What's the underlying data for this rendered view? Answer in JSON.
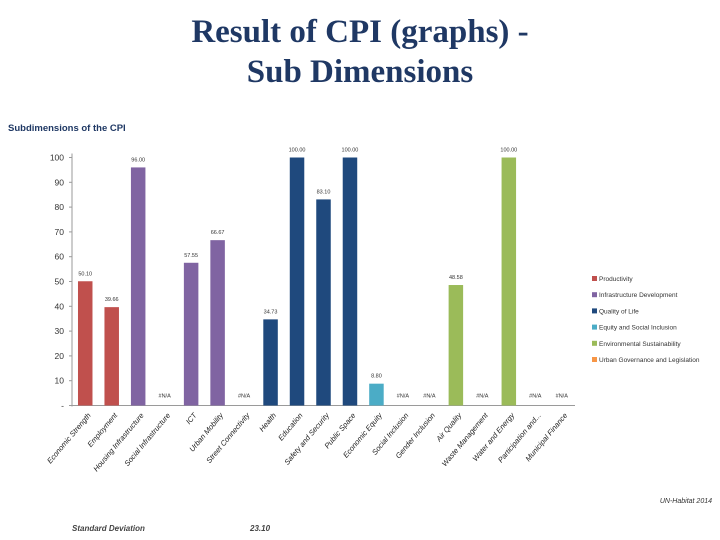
{
  "slide": {
    "title_line1": "Result of CPI (graphs) -",
    "title_line2": "Sub Dimensions"
  },
  "footer": {
    "credit": "UN-Habitat 2014",
    "std_label": "Standard Deviation",
    "std_value": "23.10"
  },
  "chart_data": {
    "type": "bar",
    "title": "Subdimensions of the CPI",
    "ylim": [
      0,
      100
    ],
    "yticks": [
      "-",
      "10",
      "20",
      "30",
      "40",
      "50",
      "60",
      "70",
      "80",
      "90",
      "100"
    ],
    "grid": false,
    "legend_position": "right",
    "groups": [
      {
        "name": "Productivity",
        "color": "#c0504d"
      },
      {
        "name": "Infrastructure Development",
        "color": "#8064a2"
      },
      {
        "name": "Quality of Life",
        "color": "#1f497d"
      },
      {
        "name": "Equity and Social Inclusion",
        "color": "#4bacc6"
      },
      {
        "name": "Environmental Sustainability",
        "color": "#9bbb59"
      },
      {
        "name": "Urban Governance and Legislation",
        "color": "#f79646"
      }
    ],
    "categories": [
      {
        "label": "Economic Strength",
        "value": 50.1,
        "text": "50.10",
        "group": 0
      },
      {
        "label": "Employment",
        "value": 39.66,
        "text": "39.66",
        "group": 0
      },
      {
        "label": "Housing Infrastructure",
        "value": 96.0,
        "text": "96.00",
        "group": 1
      },
      {
        "label": "Social Infrastructure",
        "value": null,
        "text": "#N/A",
        "group": 1
      },
      {
        "label": "ICT",
        "value": 57.55,
        "text": "57.55",
        "group": 1
      },
      {
        "label": "Urban Mobility",
        "value": 66.67,
        "text": "66.67",
        "group": 1
      },
      {
        "label": "Street Connectivity",
        "value": null,
        "text": "#N/A",
        "group": 1
      },
      {
        "label": "Health",
        "value": 34.73,
        "text": "34.73",
        "group": 2
      },
      {
        "label": "Education",
        "value": 100.0,
        "text": "100.00",
        "group": 2
      },
      {
        "label": "Safety and Security",
        "value": 83.1,
        "text": "83.10",
        "group": 2
      },
      {
        "label": "Public Space",
        "value": 100.0,
        "text": "100.00",
        "group": 2
      },
      {
        "label": "Economic Equity",
        "value": 8.8,
        "text": "8.80",
        "group": 3
      },
      {
        "label": "Social Inclusion",
        "value": null,
        "text": "#N/A",
        "group": 3
      },
      {
        "label": "Gender Inclusion",
        "value": null,
        "text": "#N/A",
        "group": 3
      },
      {
        "label": "Air Quality",
        "value": 48.58,
        "text": "48.58",
        "group": 4
      },
      {
        "label": "Waste Management",
        "value": null,
        "text": "#N/A",
        "group": 4
      },
      {
        "label": "Water and Energy",
        "value": 100.0,
        "text": "100.00",
        "group": 4
      },
      {
        "label": "Participation and...",
        "value": null,
        "text": "#N/A",
        "group": 5
      },
      {
        "label": "Municipal Finance",
        "value": null,
        "text": "#N/A",
        "group": 5
      }
    ]
  }
}
